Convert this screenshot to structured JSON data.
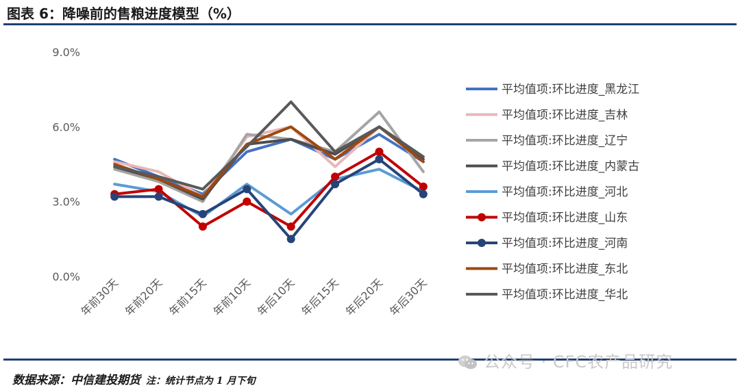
{
  "header": {
    "title": "图表 6：降噪前的售粮进度模型（%）"
  },
  "footer": {
    "source": "数据来源：中信建投期货",
    "note": "注：统计节点为 1 月下旬"
  },
  "watermark": {
    "text": "公众号 · CFC农产品研究",
    "icon": "wechat-icon"
  },
  "chart_data": {
    "type": "line",
    "categories": [
      "年前30天",
      "年前20天",
      "年前15天",
      "年前10天",
      "年后10天",
      "年后15天",
      "年后20天",
      "年后30天"
    ],
    "y_ticks": [
      "9.0%",
      "6.0%",
      "3.0%",
      "0.0%"
    ],
    "ylim": [
      0,
      9
    ],
    "grid": false,
    "legend_position": "right",
    "series": [
      {
        "name": "平均值项:环比进度_黑龙江",
        "color": "#4472c4",
        "marker": false,
        "values": [
          4.7,
          4.0,
          3.3,
          5.0,
          5.5,
          4.7,
          5.7,
          4.6
        ]
      },
      {
        "name": "平均值项:环比进度_吉林",
        "color": "#e8b7b7",
        "marker": false,
        "values": [
          4.6,
          4.2,
          3.2,
          5.6,
          6.0,
          4.4,
          6.0,
          4.7
        ]
      },
      {
        "name": "平均值项:环比进度_辽宁",
        "color": "#a5a5a5",
        "marker": false,
        "values": [
          4.3,
          3.8,
          3.0,
          5.7,
          5.5,
          5.0,
          6.6,
          4.2
        ]
      },
      {
        "name": "平均值项:环比进度_内蒙古",
        "color": "#4d4d4d",
        "marker": false,
        "values": [
          4.4,
          3.9,
          3.1,
          5.3,
          5.5,
          4.9,
          6.0,
          4.7
        ]
      },
      {
        "name": "平均值项:环比进度_河北",
        "color": "#5b9bd5",
        "marker": false,
        "values": [
          3.7,
          3.4,
          2.4,
          3.7,
          2.5,
          3.9,
          4.3,
          3.4
        ]
      },
      {
        "name": "平均值项:环比进度_山东",
        "color": "#c00000",
        "marker": true,
        "values": [
          3.3,
          3.5,
          2.0,
          3.0,
          2.0,
          4.0,
          5.0,
          3.6
        ]
      },
      {
        "name": "平均值项:环比进度_河南",
        "color": "#264478",
        "marker": true,
        "values": [
          3.2,
          3.2,
          2.5,
          3.5,
          1.5,
          3.7,
          4.7,
          3.3
        ]
      },
      {
        "name": "平均值项:环比进度_东北",
        "color": "#9e480e",
        "marker": false,
        "values": [
          4.5,
          3.9,
          3.2,
          5.3,
          6.0,
          4.7,
          6.0,
          4.6
        ]
      },
      {
        "name": "平均值项:环比进度_华北",
        "color": "#595959",
        "marker": false,
        "values": [
          4.4,
          4.0,
          3.5,
          5.2,
          7.0,
          5.0,
          6.0,
          4.8
        ]
      }
    ]
  }
}
